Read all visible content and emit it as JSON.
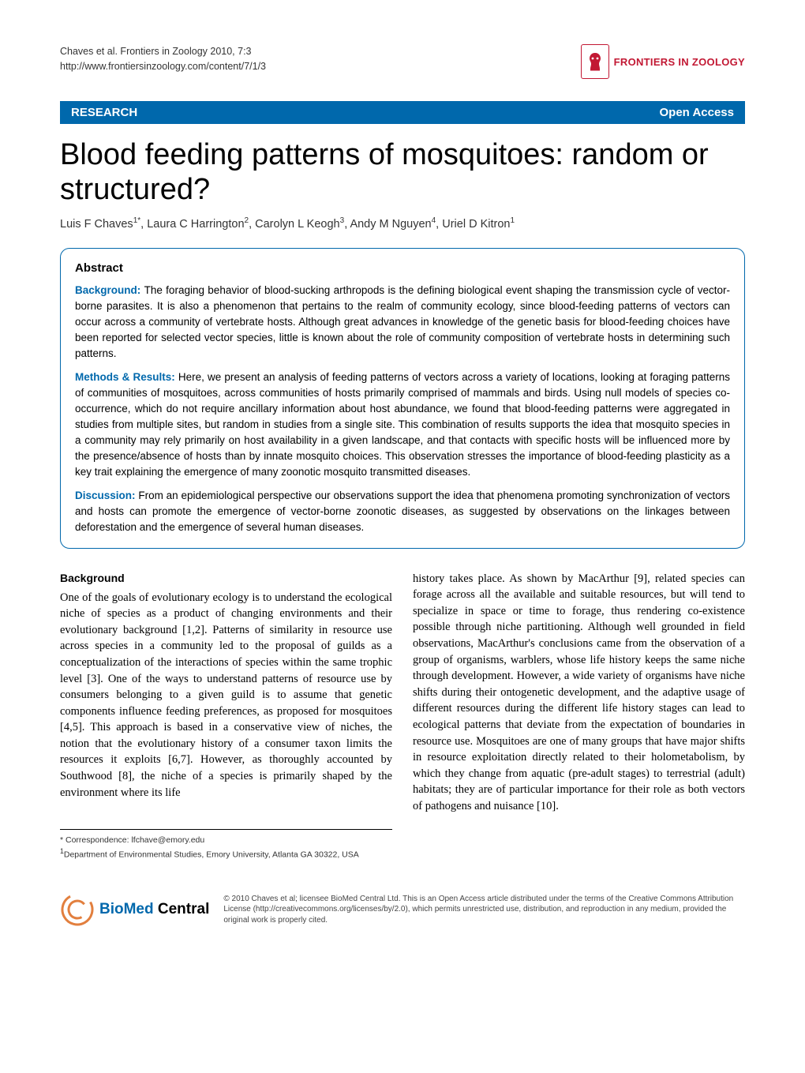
{
  "header": {
    "citation_line1": "Chaves et al. Frontiers in Zoology 2010, 7:3",
    "citation_line2": "http://www.frontiersinzoology.com/content/7/1/3",
    "journal_name": "FRONTIERS IN ZOOLOGY",
    "logo_border_color": "#c21833",
    "logo_text_color": "#c21833"
  },
  "banner": {
    "left": "RESEARCH",
    "right": "Open Access",
    "bg_color": "#0068ac",
    "text_color": "#ffffff"
  },
  "article": {
    "title": "Blood feeding patterns of mosquitoes: random or structured?",
    "authors_html": "Luis F Chaves<sup>1*</sup>, Laura C Harrington<sup>2</sup>, Carolyn L Keogh<sup>3</sup>, Andy M Nguyen<sup>4</sup>, Uriel D Kitron<sup>1</sup>"
  },
  "abstract": {
    "heading": "Abstract",
    "sections": [
      {
        "label": "Background:",
        "text": "The foraging behavior of blood-sucking arthropods is the defining biological event shaping the transmission cycle of vector-borne parasites. It is also a phenomenon that pertains to the realm of community ecology, since blood-feeding patterns of vectors can occur across a community of vertebrate hosts. Although great advances in knowledge of the genetic basis for blood-feeding choices have been reported for selected vector species, little is known about the role of community composition of vertebrate hosts in determining such patterns."
      },
      {
        "label": "Methods & Results:",
        "text": "Here, we present an analysis of feeding patterns of vectors across a variety of locations, looking at foraging patterns of communities of mosquitoes, across communities of hosts primarily comprised of mammals and birds. Using null models of species co-occurrence, which do not require ancillary information about host abundance, we found that blood-feeding patterns were aggregated in studies from multiple sites, but random in studies from a single site. This combination of results supports the idea that mosquito species in a community may rely primarily on host availability in a given landscape, and that contacts with specific hosts will be influenced more by the presence/absence of hosts than by innate mosquito choices. This observation stresses the importance of blood-feeding plasticity as a key trait explaining the emergence of many zoonotic mosquito transmitted diseases."
      },
      {
        "label": "Discussion:",
        "text": "From an epidemiological perspective our observations support the idea that phenomena promoting synchronization of vectors and hosts can promote the emergence of vector-borne zoonotic diseases, as suggested by observations on the linkages between deforestation and the emergence of several human diseases."
      }
    ],
    "label_color": "#0068ac",
    "border_color": "#0068ac"
  },
  "body": {
    "section_heading": "Background",
    "col1": "One of the goals of evolutionary ecology is to understand the ecological niche of species as a product of changing environments and their evolutionary background [1,2]. Patterns of similarity in resource use across species in a community led to the proposal of guilds as a conceptualization of the interactions of species within the same trophic level [3]. One of the ways to understand patterns of resource use by consumers belonging to a given guild is to assume that genetic components influence feeding preferences, as proposed for mosquitoes [4,5]. This approach is based in a conservative view of niches, the notion that the evolutionary history of a consumer taxon limits the resources it exploits [6,7]. However, as thoroughly accounted by Southwood [8], the niche of a species is primarily shaped by the environment where its life",
    "col2": "history takes place. As shown by MacArthur [9], related species can forage across all the available and suitable resources, but will tend to specialize in space or time to forage, thus rendering co-existence possible through niche partitioning. Although well grounded in field observations, MacArthur's conclusions came from the observation of a group of organisms, warblers, whose life history keeps the same niche through development. However, a wide variety of organisms have niche shifts during their ontogenetic development, and the adaptive usage of different resources during the different life history stages can lead to ecological patterns that deviate from the expectation of boundaries in resource use. Mosquitoes are one of many groups that have major shifts in resource exploitation directly related to their holometabolism, by which they change from aquatic (pre-adult stages) to terrestrial (adult) habitats; they are of particular importance for their role as both vectors of pathogens and nuisance [10]."
  },
  "correspondence": {
    "line1": "* Correspondence: lfchave@emory.edu",
    "line2_html": "<sup>1</sup>Department of Environmental Studies, Emory University, Atlanta GA 30322, USA"
  },
  "footer": {
    "bmc_bio": "BioMed",
    "bmc_central": " Central",
    "bmc_bio_color": "#0068ac",
    "swirl_color": "#e27f3e",
    "license": "© 2010 Chaves et al; licensee BioMed Central Ltd. This is an Open Access article distributed under the terms of the Creative Commons Attribution License (http://creativecommons.org/licenses/by/2.0), which permits unrestricted use, distribution, and reproduction in any medium, provided the original work is properly cited."
  }
}
